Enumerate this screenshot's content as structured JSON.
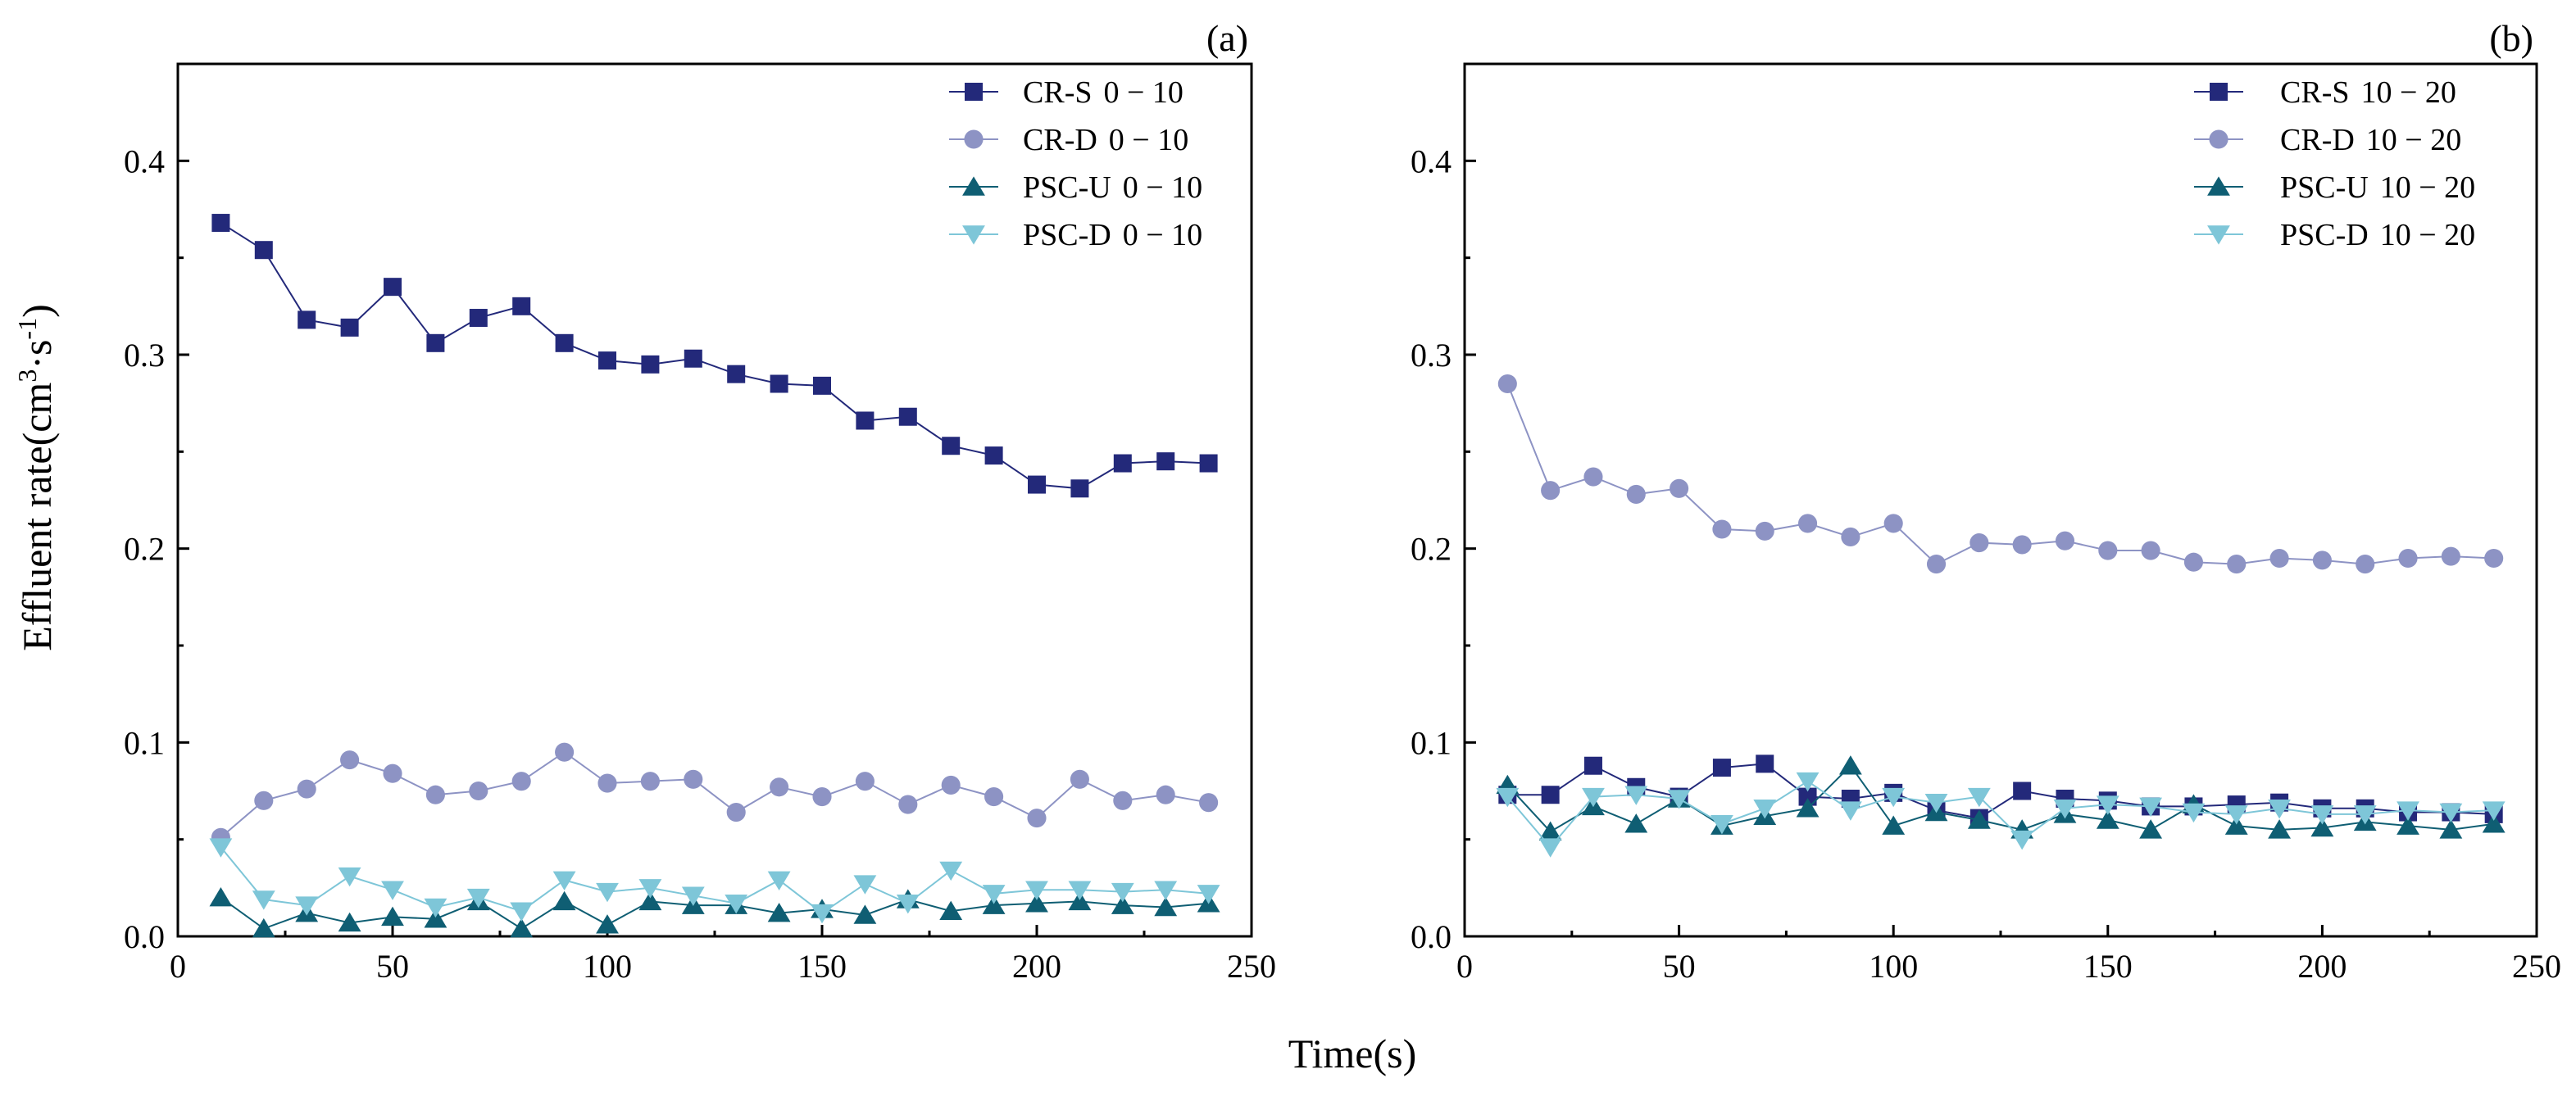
{
  "figure": {
    "ylabel": "Effluent rate(cm³·s⁻¹)",
    "ylabel_parts": {
      "base": "Effluent rate(cm",
      "sup1": "3",
      "mid": "·s",
      "sup2": "-1",
      "close": ")"
    },
    "xlabel": "Time(s)"
  },
  "chart_data": [
    {
      "type": "line",
      "panel_label": "(a)",
      "xlim": [
        0,
        250
      ],
      "ylim": [
        0,
        0.45
      ],
      "xticks": [
        0,
        50,
        100,
        150,
        200,
        250
      ],
      "yticks": [
        0.0,
        0.1,
        0.2,
        0.3,
        0.4
      ],
      "xtick_labels": [
        "0",
        "50",
        "100",
        "150",
        "200",
        "250"
      ],
      "ytick_labels": [
        "0.0",
        "0.1",
        "0.2",
        "0.3",
        "0.4"
      ],
      "legend_position": "top-right",
      "x": [
        10,
        20,
        30,
        40,
        50,
        60,
        70,
        80,
        90,
        100,
        110,
        120,
        130,
        140,
        150,
        160,
        170,
        180,
        190,
        200,
        210,
        220,
        230,
        240
      ],
      "series": [
        {
          "name": "CR-S",
          "range": "0 − 10",
          "marker": "square",
          "color": "#23297a",
          "values": [
            0.368,
            0.354,
            0.318,
            0.314,
            0.335,
            0.306,
            0.319,
            0.325,
            0.306,
            0.297,
            0.295,
            0.298,
            0.29,
            0.285,
            0.284,
            0.266,
            0.268,
            0.253,
            0.248,
            0.233,
            0.231,
            0.244,
            0.245,
            0.244
          ]
        },
        {
          "name": "CR-D",
          "range": "0 − 10",
          "marker": "circle",
          "color": "#8d93c4",
          "values": [
            0.051,
            0.07,
            0.076,
            0.091,
            0.084,
            0.073,
            0.075,
            0.08,
            0.095,
            0.079,
            0.08,
            0.081,
            0.064,
            0.077,
            0.072,
            0.08,
            0.068,
            0.078,
            0.072,
            0.061,
            0.081,
            0.07,
            0.073,
            0.069
          ]
        },
        {
          "name": "PSC-U",
          "range": "0 − 10",
          "marker": "triangle-up",
          "color": "#0f5e73",
          "values": [
            0.02,
            0.004,
            0.012,
            0.007,
            0.01,
            0.009,
            0.018,
            0.004,
            0.018,
            0.006,
            0.018,
            0.016,
            0.016,
            0.012,
            0.014,
            0.011,
            0.019,
            0.013,
            0.016,
            0.017,
            0.018,
            0.016,
            0.015,
            0.017
          ]
        },
        {
          "name": "PSC-D",
          "range": "0 − 10",
          "marker": "triangle-down",
          "color": "#7ec6d8",
          "values": [
            0.046,
            0.019,
            0.016,
            0.031,
            0.024,
            0.015,
            0.02,
            0.013,
            0.029,
            0.023,
            0.025,
            0.021,
            0.017,
            0.029,
            0.012,
            0.027,
            0.017,
            0.034,
            0.022,
            0.024,
            0.024,
            0.023,
            0.024,
            0.022
          ]
        }
      ]
    },
    {
      "type": "line",
      "panel_label": "(b)",
      "xlim": [
        0,
        250
      ],
      "ylim": [
        0,
        0.45
      ],
      "xticks": [
        0,
        50,
        100,
        150,
        200,
        250
      ],
      "yticks": [
        0.0,
        0.1,
        0.2,
        0.3,
        0.4
      ],
      "xtick_labels": [
        "0",
        "50",
        "100",
        "150",
        "200",
        "250"
      ],
      "ytick_labels": [
        "0.0",
        "0.1",
        "0.2",
        "0.3",
        "0.4"
      ],
      "legend_position": "top-right",
      "x": [
        10,
        20,
        30,
        40,
        50,
        60,
        70,
        80,
        90,
        100,
        110,
        120,
        130,
        140,
        150,
        160,
        170,
        180,
        190,
        200,
        210,
        220,
        230,
        240
      ],
      "series": [
        {
          "name": "CR-S",
          "range": "10 − 20",
          "marker": "square",
          "color": "#23297a",
          "values": [
            0.073,
            0.073,
            0.088,
            0.077,
            0.072,
            0.087,
            0.089,
            0.072,
            0.071,
            0.074,
            0.065,
            0.061,
            0.075,
            0.071,
            0.07,
            0.067,
            0.067,
            0.068,
            0.069,
            0.066,
            0.066,
            0.064,
            0.064,
            0.063
          ]
        },
        {
          "name": "CR-D",
          "range": "10 − 20",
          "marker": "circle",
          "color": "#8d93c4",
          "values": [
            0.285,
            0.23,
            0.237,
            0.228,
            0.231,
            0.21,
            0.209,
            0.213,
            0.206,
            0.213,
            0.192,
            0.203,
            0.202,
            0.204,
            0.199,
            0.199,
            0.193,
            0.192,
            0.195,
            0.194,
            0.192,
            0.195,
            0.196,
            0.195
          ]
        },
        {
          "name": "PSC-U",
          "range": "10 − 20",
          "marker": "triangle-up",
          "color": "#0f5e73",
          "values": [
            0.078,
            0.054,
            0.067,
            0.058,
            0.071,
            0.057,
            0.062,
            0.066,
            0.088,
            0.057,
            0.064,
            0.06,
            0.055,
            0.063,
            0.06,
            0.055,
            0.068,
            0.057,
            0.055,
            0.056,
            0.059,
            0.057,
            0.055,
            0.058
          ]
        },
        {
          "name": "PSC-D",
          "range": "10 − 20",
          "marker": "triangle-down",
          "color": "#7ec6d8",
          "values": [
            0.072,
            0.046,
            0.072,
            0.073,
            0.071,
            0.058,
            0.066,
            0.08,
            0.065,
            0.072,
            0.069,
            0.072,
            0.05,
            0.066,
            0.068,
            0.067,
            0.064,
            0.063,
            0.066,
            0.063,
            0.063,
            0.065,
            0.064,
            0.065
          ]
        }
      ]
    }
  ]
}
